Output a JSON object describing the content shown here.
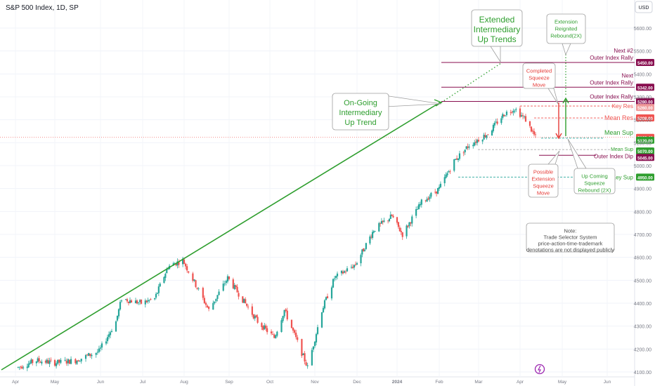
{
  "header": {
    "symbol": "S&P 500 Index, 1D, SP",
    "currency": "USD"
  },
  "colors": {
    "up": "#26a69a",
    "down": "#ef5350",
    "trend": "#2e9e2e",
    "resistance_line": "#880e4f",
    "res_label": "#ef5350",
    "sup_label": "#26a69a",
    "outer_label": "#880e4f"
  },
  "chart_data": {
    "type": "candlestick",
    "title": "S&P 500 Index, 1D, SP",
    "y_axis": {
      "min": 4080,
      "max": 5700,
      "ticks": [
        4100,
        4200,
        4300,
        4400,
        4500,
        4600,
        4700,
        4800,
        4900,
        5000,
        5100,
        5200,
        5300,
        5400,
        5500,
        5600
      ]
    },
    "x_axis": {
      "labels": [
        "Apr",
        "May",
        "Jun",
        "Jul",
        "Aug",
        "Sep",
        "Oct",
        "Nov",
        "Dec",
        "2024",
        "Feb",
        "Mar",
        "Apr",
        "May",
        "Jun"
      ]
    },
    "price_path": [
      [
        "2023-04-03",
        4120
      ],
      [
        "2023-04-17",
        4150
      ],
      [
        "2023-05-01",
        4140
      ],
      [
        "2023-05-15",
        4150
      ],
      [
        "2023-05-31",
        4190
      ],
      [
        "2023-06-12",
        4320
      ],
      [
        "2023-06-16",
        4420
      ],
      [
        "2023-06-30",
        4400
      ],
      [
        "2023-07-10",
        4420
      ],
      [
        "2023-07-20",
        4560
      ],
      [
        "2023-07-31",
        4588
      ],
      [
        "2023-08-09",
        4480
      ],
      [
        "2023-08-18",
        4370
      ],
      [
        "2023-08-31",
        4510
      ],
      [
        "2023-09-07",
        4450
      ],
      [
        "2023-09-22",
        4320
      ],
      [
        "2023-10-04",
        4250
      ],
      [
        "2023-10-11",
        4370
      ],
      [
        "2023-10-20",
        4230
      ],
      [
        "2023-10-27",
        4120
      ],
      [
        "2023-11-06",
        4370
      ],
      [
        "2023-11-15",
        4510
      ],
      [
        "2023-11-30",
        4570
      ],
      [
        "2023-12-14",
        4720
      ],
      [
        "2023-12-28",
        4780
      ],
      [
        "2024-01-05",
        4700
      ],
      [
        "2024-01-19",
        4840
      ],
      [
        "2024-02-01",
        4900
      ],
      [
        "2024-02-12",
        5020
      ],
      [
        "2024-02-23",
        5090
      ],
      [
        "2024-03-08",
        5140
      ],
      [
        "2024-03-20",
        5225
      ],
      [
        "2024-03-28",
        5250
      ],
      [
        "2024-04-05",
        5200
      ],
      [
        "2024-04-12",
        5123
      ]
    ],
    "horizontal_levels": [
      {
        "name": "Next #2 Outer Index Rally",
        "value": 5450.0,
        "label": "5450.00"
      },
      {
        "name": "Next Outer Index Rally",
        "value": 5342.0,
        "label": "5342.00"
      },
      {
        "name": "Outer Index Rally",
        "value": 5280.0,
        "label": "5280.00"
      },
      {
        "name": "Key Res",
        "value": 5260.0,
        "label": "5260.00"
      },
      {
        "name": "Mean Res",
        "value": 5208.0,
        "label": "5208.00"
      },
      {
        "name": "Mean Sup",
        "value": 5120.0,
        "label": "5120.00"
      },
      {
        "name": "Mean Sup",
        "value": 5070.0,
        "label": "5070.00"
      },
      {
        "name": "Outer Index Dip",
        "value": 5045.0,
        "label": "5045.00"
      },
      {
        "name": "Key Sup",
        "value": 4950.0,
        "label": "4950.00"
      }
    ],
    "last_price": {
      "value": 5123.4,
      "label": "5123.40"
    },
    "annotations": {
      "extended_trend": "Extended Intermediary Up Trends",
      "ongoing_trend": "On-Going Intermediary Up Trend",
      "extension_reignited": "Extension Reignited Rebound(2X)",
      "completed_squeeze": "Completed Squeeze Move",
      "possible_extension": "Possible Extension Squeeze Move",
      "upcoming_squeeze": "Up Coming Squeeze Rebound (2X)",
      "note": "Note: Trade Selector System price-action-time-trademark denotations are not displayed publicly"
    }
  }
}
